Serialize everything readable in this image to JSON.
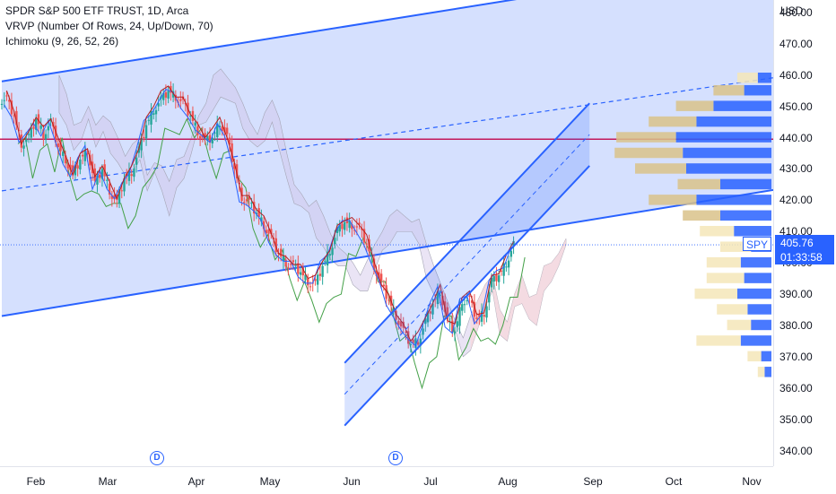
{
  "legend": {
    "symbol_line": "SPDR S&P 500 ETF TRUST, 1D, Arca",
    "vrvp_line": "VRVP (Number Of Rows, 24, Up/Down, 70)",
    "ichimoku_line": "Ichimoku (9, 26, 52, 26)"
  },
  "currency": "USD",
  "price_tag": {
    "symbol": "SPY",
    "price": "405.76",
    "countdown": "01:33:58"
  },
  "dividend_badges": [
    "D",
    "D"
  ],
  "colors": {
    "up": "#26a69a",
    "down": "#ef5350",
    "channel": "#2962ff",
    "channel_fill": "#c7d5fd",
    "tenkan": "#2962ff",
    "kijun": "#b71c1c",
    "lagging": "#43a047",
    "cloud_bear": "#f8d7da",
    "cloud_bull": "#d1c4e9",
    "hline": "#c2185b",
    "vp_up": "#2962ff",
    "vp_down": "#f5e6b8"
  },
  "chart_data": {
    "type": "candlestick",
    "symbol": "SPY",
    "timeframe": "1D",
    "y_ticks": [
      "480.00",
      "470.00",
      "460.00",
      "450.00",
      "440.00",
      "430.00",
      "420.00",
      "410.00",
      "400.00",
      "390.00",
      "380.00",
      "370.00",
      "360.00",
      "350.00",
      "340.00"
    ],
    "y_range": [
      335,
      484
    ],
    "x_ticks": [
      "Feb",
      "Mar",
      "Apr",
      "May",
      "Jun",
      "Jul",
      "Aug",
      "Sep",
      "Oct",
      "Nov"
    ],
    "last_price": 405.76,
    "horizontal_line": 439.5,
    "close_path": [
      [
        0,
        452
      ],
      [
        3,
        447
      ],
      [
        6,
        438
      ],
      [
        9,
        440
      ],
      [
        12,
        446
      ],
      [
        15,
        441
      ],
      [
        18,
        445
      ],
      [
        21,
        437
      ],
      [
        24,
        433
      ],
      [
        27,
        428
      ],
      [
        30,
        433
      ],
      [
        33,
        436
      ],
      [
        36,
        425
      ],
      [
        39,
        430
      ],
      [
        42,
        423
      ],
      [
        45,
        419
      ],
      [
        48,
        427
      ],
      [
        51,
        429
      ],
      [
        54,
        436
      ],
      [
        57,
        444
      ],
      [
        60,
        449
      ],
      [
        63,
        452
      ],
      [
        66,
        455
      ],
      [
        69,
        453
      ],
      [
        72,
        451
      ],
      [
        75,
        447
      ],
      [
        78,
        442
      ],
      [
        81,
        439
      ],
      [
        84,
        440
      ],
      [
        87,
        445
      ],
      [
        90,
        440
      ],
      [
        93,
        430
      ],
      [
        96,
        421
      ],
      [
        99,
        419
      ],
      [
        102,
        416
      ],
      [
        105,
        412
      ],
      [
        108,
        408
      ],
      [
        111,
        403
      ],
      [
        114,
        400
      ],
      [
        117,
        399
      ],
      [
        120,
        397
      ],
      [
        123,
        394
      ],
      [
        126,
        393
      ],
      [
        129,
        399
      ],
      [
        132,
        404
      ],
      [
        135,
        410
      ],
      [
        138,
        413
      ],
      [
        141,
        412
      ],
      [
        144,
        411
      ],
      [
        147,
        406
      ],
      [
        150,
        399
      ],
      [
        153,
        393
      ],
      [
        156,
        388
      ],
      [
        159,
        383
      ],
      [
        162,
        378
      ],
      [
        165,
        374
      ],
      [
        168,
        375
      ],
      [
        171,
        381
      ],
      [
        174,
        387
      ],
      [
        177,
        391
      ],
      [
        180,
        381
      ],
      [
        183,
        378
      ],
      [
        186,
        388
      ],
      [
        189,
        388
      ],
      [
        192,
        382
      ],
      [
        195,
        384
      ],
      [
        198,
        394
      ],
      [
        201,
        396
      ],
      [
        204,
        400
      ],
      [
        207,
        405.76
      ]
    ],
    "channel_upper_wedge": [
      [
        0,
        458
      ],
      [
        232,
        487
      ]
    ],
    "channel_lower_wedge": [
      [
        0,
        383
      ],
      [
        305,
        422
      ]
    ],
    "rising_channel_upper": [
      [
        140,
        368
      ],
      [
        240,
        451
      ]
    ],
    "rising_channel_lower": [
      [
        140,
        348
      ],
      [
        240,
        431
      ]
    ],
    "rising_channel_mid": [
      [
        140,
        358
      ],
      [
        240,
        441
      ]
    ],
    "wedge_mid": [
      [
        0,
        423
      ],
      [
        305,
        458
      ]
    ],
    "volume_profile": [
      {
        "price": 459,
        "up": 12,
        "down": 8
      },
      {
        "price": 455,
        "up": 18,
        "down": 16
      },
      {
        "price": 450,
        "up": 22,
        "down": 34
      },
      {
        "price": 445,
        "up": 28,
        "down": 44
      },
      {
        "price": 440,
        "up": 35,
        "down": 56
      },
      {
        "price": 435,
        "up": 40,
        "down": 52
      },
      {
        "price": 430,
        "up": 30,
        "down": 50
      },
      {
        "price": 425,
        "up": 25,
        "down": 30
      },
      {
        "price": 420,
        "up": 28,
        "down": 44
      },
      {
        "price": 415,
        "up": 22,
        "down": 30
      },
      {
        "price": 410,
        "up": 20,
        "down": 22
      },
      {
        "price": 405,
        "up": 18,
        "down": 12
      },
      {
        "price": 400,
        "up": 20,
        "down": 18
      },
      {
        "price": 395,
        "up": 22,
        "down": 16
      },
      {
        "price": 390,
        "up": 25,
        "down": 20
      },
      {
        "price": 385,
        "up": 18,
        "down": 14
      },
      {
        "price": 380,
        "up": 14,
        "down": 12
      },
      {
        "price": 375,
        "up": 26,
        "down": 18
      },
      {
        "price": 370,
        "up": 8,
        "down": 6
      },
      {
        "price": 365,
        "up": 4,
        "down": 4
      }
    ]
  }
}
